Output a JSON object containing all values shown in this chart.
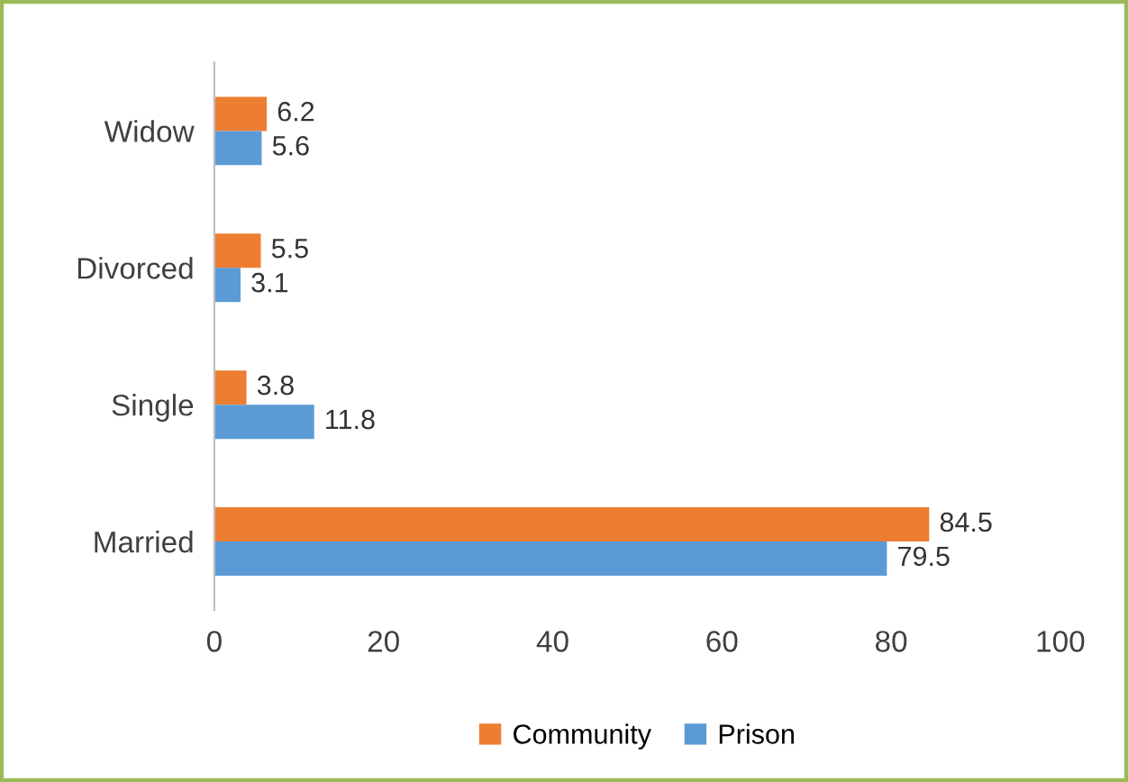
{
  "chart_data": {
    "type": "bar",
    "orientation": "horizontal",
    "categories": [
      "Widow",
      "Divorced",
      "Single",
      "Married"
    ],
    "series": [
      {
        "name": "Community",
        "color": "#ed7d31",
        "values": [
          6.2,
          5.5,
          3.8,
          84.5
        ]
      },
      {
        "name": "Prison",
        "color": "#5b9bd5",
        "values": [
          5.6,
          3.1,
          11.8,
          79.5
        ]
      }
    ],
    "xlim": [
      0,
      100
    ],
    "xticks": [
      0,
      20,
      40,
      60,
      80,
      100
    ],
    "data_labels": true,
    "grid": false,
    "legend": "bottom"
  }
}
